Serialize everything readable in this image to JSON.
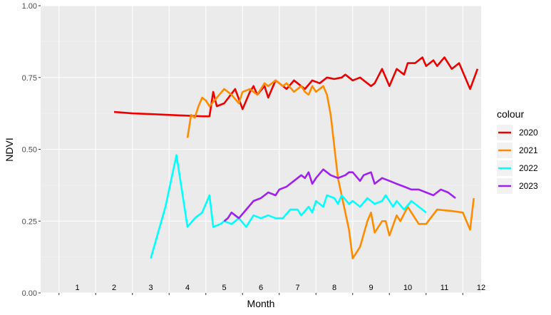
{
  "chart_data": {
    "type": "line",
    "xlabel": "Month",
    "ylabel": "NDVI",
    "xlim": [
      0.5,
      12.5
    ],
    "ylim": [
      0,
      1
    ],
    "month_labels": [
      {
        "label": "1",
        "x": 1.5
      },
      {
        "label": "2",
        "x": 2.5
      },
      {
        "label": "3",
        "x": 3.5
      },
      {
        "label": "4",
        "x": 4.5
      },
      {
        "label": "5",
        "x": 5.5
      },
      {
        "label": "6",
        "x": 6.5
      },
      {
        "label": "7",
        "x": 7.5
      },
      {
        "label": "8",
        "x": 8.5
      },
      {
        "label": "9",
        "x": 9.5
      },
      {
        "label": "10",
        "x": 10.5
      },
      {
        "label": "11",
        "x": 11.5
      },
      {
        "label": "12",
        "x": 12.5
      }
    ],
    "y_ticks": [
      {
        "label": "0.00",
        "value": 0
      },
      {
        "label": "0.25",
        "value": 0.25
      },
      {
        "label": "0.50",
        "value": 0.5
      },
      {
        "label": "0.75",
        "value": 0.75
      },
      {
        "label": "1.00",
        "value": 1
      }
    ],
    "legend_title": "colour",
    "legend_position": "right",
    "grid": true,
    "series": [
      {
        "name": "2020",
        "color": "#ee0000",
        "x": [
          2.5,
          3.0,
          3.6,
          4.3,
          4.9,
          5.1,
          5.2,
          5.3,
          5.5,
          5.8,
          6.0,
          6.2,
          6.3,
          6.4,
          6.6,
          6.7,
          6.9,
          7.1,
          7.2,
          7.4,
          7.6,
          7.7,
          7.9,
          8.1,
          8.3,
          8.5,
          8.7,
          8.8,
          9.0,
          9.2,
          9.3,
          9.5,
          9.6,
          9.8,
          10.0,
          10.2,
          10.4,
          10.5,
          10.7,
          10.9,
          11.0,
          11.2,
          11.3,
          11.5,
          11.7,
          11.9,
          12.2,
          12.4
        ],
        "y": [
          0.63,
          0.625,
          0.622,
          0.618,
          0.615,
          0.615,
          0.7,
          0.65,
          0.66,
          0.71,
          0.64,
          0.7,
          0.72,
          0.69,
          0.72,
          0.68,
          0.74,
          0.72,
          0.71,
          0.74,
          0.72,
          0.71,
          0.74,
          0.73,
          0.75,
          0.745,
          0.75,
          0.76,
          0.74,
          0.75,
          0.74,
          0.72,
          0.73,
          0.78,
          0.72,
          0.78,
          0.76,
          0.8,
          0.8,
          0.82,
          0.79,
          0.81,
          0.79,
          0.82,
          0.78,
          0.8,
          0.71,
          0.78
        ]
      },
      {
        "name": "2021",
        "color": "#ff8c00",
        "x": [
          4.5,
          4.6,
          4.7,
          4.8,
          4.9,
          5.0,
          5.1,
          5.3,
          5.5,
          5.7,
          5.9,
          6.0,
          6.2,
          6.4,
          6.6,
          6.7,
          6.9,
          7.1,
          7.2,
          7.4,
          7.6,
          7.7,
          7.8,
          7.9,
          8.0,
          8.2,
          8.3,
          8.4,
          8.6,
          8.9,
          9.0,
          9.1,
          9.2,
          9.4,
          9.5,
          9.6,
          9.8,
          9.9,
          10.0,
          10.2,
          10.3,
          10.5,
          10.6,
          10.8,
          11.0,
          11.3,
          11.7,
          12.0,
          12.2,
          12.3
        ],
        "y": [
          0.54,
          0.62,
          0.61,
          0.65,
          0.68,
          0.67,
          0.65,
          0.68,
          0.71,
          0.69,
          0.66,
          0.7,
          0.71,
          0.69,
          0.73,
          0.72,
          0.74,
          0.72,
          0.73,
          0.7,
          0.72,
          0.7,
          0.69,
          0.72,
          0.7,
          0.72,
          0.69,
          0.62,
          0.4,
          0.22,
          0.12,
          0.14,
          0.16,
          0.25,
          0.28,
          0.21,
          0.25,
          0.25,
          0.2,
          0.27,
          0.25,
          0.3,
          0.28,
          0.24,
          0.24,
          0.29,
          0.285,
          0.28,
          0.22,
          0.33
        ]
      },
      {
        "name": "2022",
        "color": "#00ffff",
        "x": [
          3.5,
          3.9,
          4.2,
          4.5,
          4.7,
          4.9,
          5.1,
          5.2,
          5.4,
          5.5,
          5.7,
          5.9,
          6.1,
          6.3,
          6.5,
          6.7,
          6.9,
          7.1,
          7.3,
          7.5,
          7.6,
          7.8,
          7.9,
          8.0,
          8.2,
          8.3,
          8.5,
          8.6,
          8.7,
          8.9,
          9.0,
          9.2,
          9.4,
          9.6,
          9.8,
          9.9,
          10.1,
          10.2,
          10.4,
          10.6,
          10.8,
          11.0
        ],
        "y": [
          0.12,
          0.3,
          0.48,
          0.23,
          0.26,
          0.28,
          0.34,
          0.23,
          0.24,
          0.25,
          0.24,
          0.26,
          0.23,
          0.27,
          0.26,
          0.27,
          0.26,
          0.26,
          0.29,
          0.29,
          0.27,
          0.3,
          0.28,
          0.32,
          0.3,
          0.34,
          0.33,
          0.31,
          0.34,
          0.31,
          0.32,
          0.3,
          0.33,
          0.31,
          0.32,
          0.34,
          0.3,
          0.32,
          0.29,
          0.32,
          0.3,
          0.28
        ]
      },
      {
        "name": "2023",
        "color": "#a020f0",
        "x": [
          5.5,
          5.6,
          5.7,
          5.8,
          5.9,
          6.1,
          6.3,
          6.5,
          6.7,
          6.9,
          7.0,
          7.2,
          7.4,
          7.6,
          7.7,
          7.8,
          7.9,
          8.0,
          8.2,
          8.4,
          8.6,
          8.8,
          8.9,
          9.0,
          9.2,
          9.3,
          9.5,
          9.6,
          9.8,
          10.0,
          10.2,
          10.4,
          10.6,
          10.8,
          11.0,
          11.2,
          11.4,
          11.6,
          11.8
        ],
        "y": [
          0.25,
          0.26,
          0.28,
          0.27,
          0.26,
          0.29,
          0.32,
          0.33,
          0.35,
          0.34,
          0.36,
          0.37,
          0.39,
          0.41,
          0.4,
          0.42,
          0.38,
          0.4,
          0.43,
          0.41,
          0.4,
          0.41,
          0.42,
          0.42,
          0.39,
          0.41,
          0.42,
          0.38,
          0.4,
          0.39,
          0.38,
          0.37,
          0.36,
          0.36,
          0.35,
          0.34,
          0.36,
          0.35,
          0.33
        ]
      }
    ]
  }
}
